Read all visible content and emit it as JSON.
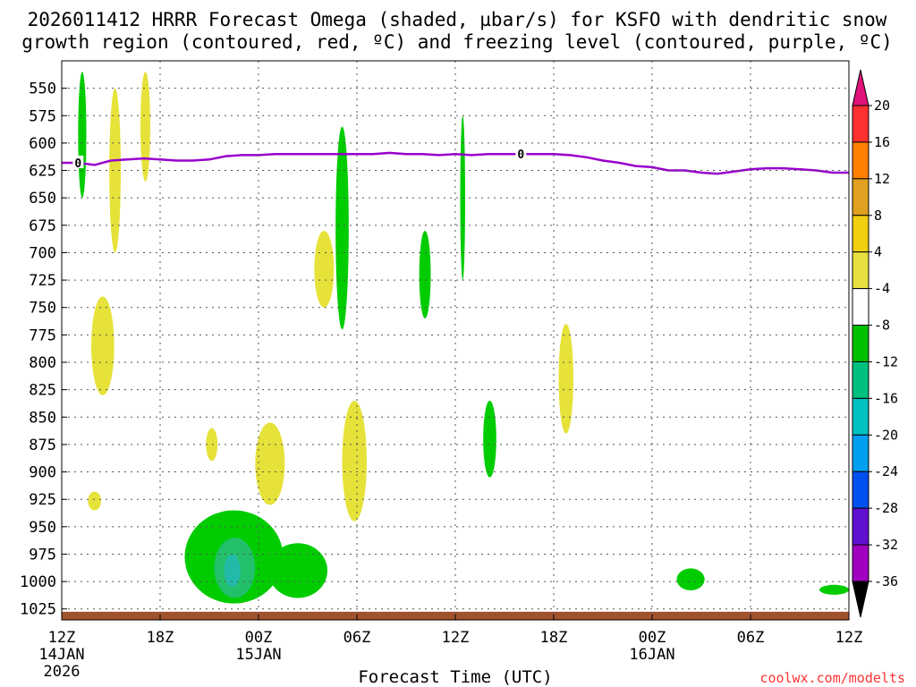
{
  "title": {
    "line1": "2026011412 HRRR Forecast Omega (shaded, µbar/s) for KSFO with dendritic snow",
    "line2": "growth region (contoured, red, ºC) and freezing level (contoured, purple, ºC)"
  },
  "credit": "coolwx.com/modelts",
  "chart_data": {
    "type": "heatmap",
    "title": "2026011412 HRRR Forecast Omega (shaded, µbar/s) for KSFO with dendritic snow growth region (contoured, red, ºC) and freezing level (contoured, purple, ºC)",
    "xlabel": "Forecast Time (UTC)",
    "ylabel": "",
    "x_unit": "forecast hour",
    "xlim": [
      0,
      48
    ],
    "ylim_hPa": [
      1035,
      525
    ],
    "x_ticks": [
      {
        "h": 0,
        "label": "12Z",
        "sub1": "14JAN",
        "sub2": "2026"
      },
      {
        "h": 6,
        "label": "18Z"
      },
      {
        "h": 12,
        "label": "00Z",
        "sub1": "15JAN"
      },
      {
        "h": 18,
        "label": "06Z"
      },
      {
        "h": 24,
        "label": "12Z"
      },
      {
        "h": 30,
        "label": "18Z"
      },
      {
        "h": 36,
        "label": "00Z",
        "sub1": "16JAN"
      },
      {
        "h": 42,
        "label": "06Z"
      },
      {
        "h": 48,
        "label": "12Z"
      }
    ],
    "y_ticks": [
      "550",
      "575",
      "600",
      "625",
      "650",
      "675",
      "700",
      "725",
      "750",
      "775",
      "800",
      "825",
      "850",
      "875",
      "900",
      "925",
      "950",
      "975",
      "1000",
      "1025"
    ],
    "grid": true,
    "colorbar": {
      "labels": [
        "20",
        "16",
        "12",
        "8",
        "4",
        "-4",
        "-8",
        "-12",
        "-16",
        "-20",
        "-24",
        "-28",
        "-32",
        "-36"
      ],
      "colors": [
        "#e0137a",
        "#ff3030",
        "#ff7f00",
        "#e0a020",
        "#f0d010",
        "#e8e040",
        "#ffffff",
        "#00c000",
        "#00c080",
        "#00c0c0",
        "#00a0f0",
        "#0050f0",
        "#6010d0",
        "#a000c0",
        "#a0a0a0",
        "#000000"
      ]
    },
    "freezing_level": {
      "label": "0",
      "color": "#9900cc",
      "hours": [
        0,
        1,
        2,
        3,
        4,
        5,
        6,
        7,
        8,
        9,
        10,
        11,
        12,
        13,
        14,
        15,
        16,
        17,
        18,
        19,
        20,
        21,
        22,
        23,
        24,
        25,
        26,
        27,
        28,
        29,
        30,
        31,
        32,
        33,
        34,
        35,
        36,
        37,
        38,
        39,
        40,
        41,
        42,
        43,
        44,
        45,
        46,
        47,
        48
      ],
      "pressure": [
        618,
        618,
        620,
        616,
        615,
        614,
        615,
        616,
        616,
        615,
        612,
        611,
        611,
        610,
        610,
        610,
        610,
        610,
        610,
        610,
        609,
        610,
        610,
        611,
        610,
        611,
        610,
        610,
        610,
        610,
        610,
        611,
        613,
        616,
        618,
        621,
        622,
        625,
        625,
        627,
        628,
        626,
        624,
        623,
        623,
        624,
        625,
        627,
        627
      ]
    },
    "omega_regions": [
      {
        "omega": -6,
        "h": [
          1.0,
          1.5
        ],
        "p": [
          535,
          650
        ]
      },
      {
        "omega": 5,
        "h": [
          2.9,
          3.6
        ],
        "p": [
          550,
          700
        ]
      },
      {
        "omega": 5,
        "h": [
          4.8,
          5.4
        ],
        "p": [
          535,
          635
        ]
      },
      {
        "omega": 5,
        "h": [
          1.8,
          3.2
        ],
        "p": [
          740,
          830
        ]
      },
      {
        "omega": 5,
        "h": [
          1.6,
          2.4
        ],
        "p": [
          918,
          935
        ]
      },
      {
        "omega": 5,
        "h": [
          8.8,
          9.5
        ],
        "p": [
          860,
          890
        ]
      },
      {
        "omega": 5,
        "h": [
          11.8,
          13.6
        ],
        "p": [
          855,
          930
        ]
      },
      {
        "omega": 5,
        "h": [
          15.4,
          16.6
        ],
        "p": [
          680,
          750
        ]
      },
      {
        "omega": 5,
        "h": [
          17.1,
          18.6
        ],
        "p": [
          835,
          945
        ]
      },
      {
        "omega": -6,
        "h": [
          16.7,
          17.5
        ],
        "p": [
          585,
          770
        ]
      },
      {
        "omega": -6,
        "h": [
          21.8,
          22.5
        ],
        "p": [
          680,
          760
        ]
      },
      {
        "omega": 5,
        "h": [
          30.3,
          31.2
        ],
        "p": [
          765,
          865
        ]
      },
      {
        "omega": -6,
        "h": [
          24.3,
          24.6
        ],
        "p": [
          575,
          725
        ]
      },
      {
        "omega": -6,
        "h": [
          25.7,
          26.5
        ],
        "p": [
          835,
          905
        ]
      },
      {
        "omega": -6,
        "h": [
          7.5,
          13.5
        ],
        "p": [
          935,
          1020
        ]
      },
      {
        "omega": -10,
        "h": [
          9.3,
          11.8
        ],
        "p": [
          960,
          1015
        ]
      },
      {
        "omega": -14,
        "h": [
          9.9,
          10.9
        ],
        "p": [
          975,
          1005
        ]
      },
      {
        "omega": -6,
        "h": [
          12.6,
          16.2
        ],
        "p": [
          965,
          1015
        ]
      },
      {
        "omega": -6,
        "h": [
          37.5,
          39.2
        ],
        "p": [
          988,
          1008
        ]
      },
      {
        "omega": -6,
        "h": [
          46.2,
          48.0
        ],
        "p": [
          1003,
          1012
        ]
      }
    ],
    "terrain": {
      "color": "#a0522d",
      "top_pressure_hPa": 1030
    }
  }
}
